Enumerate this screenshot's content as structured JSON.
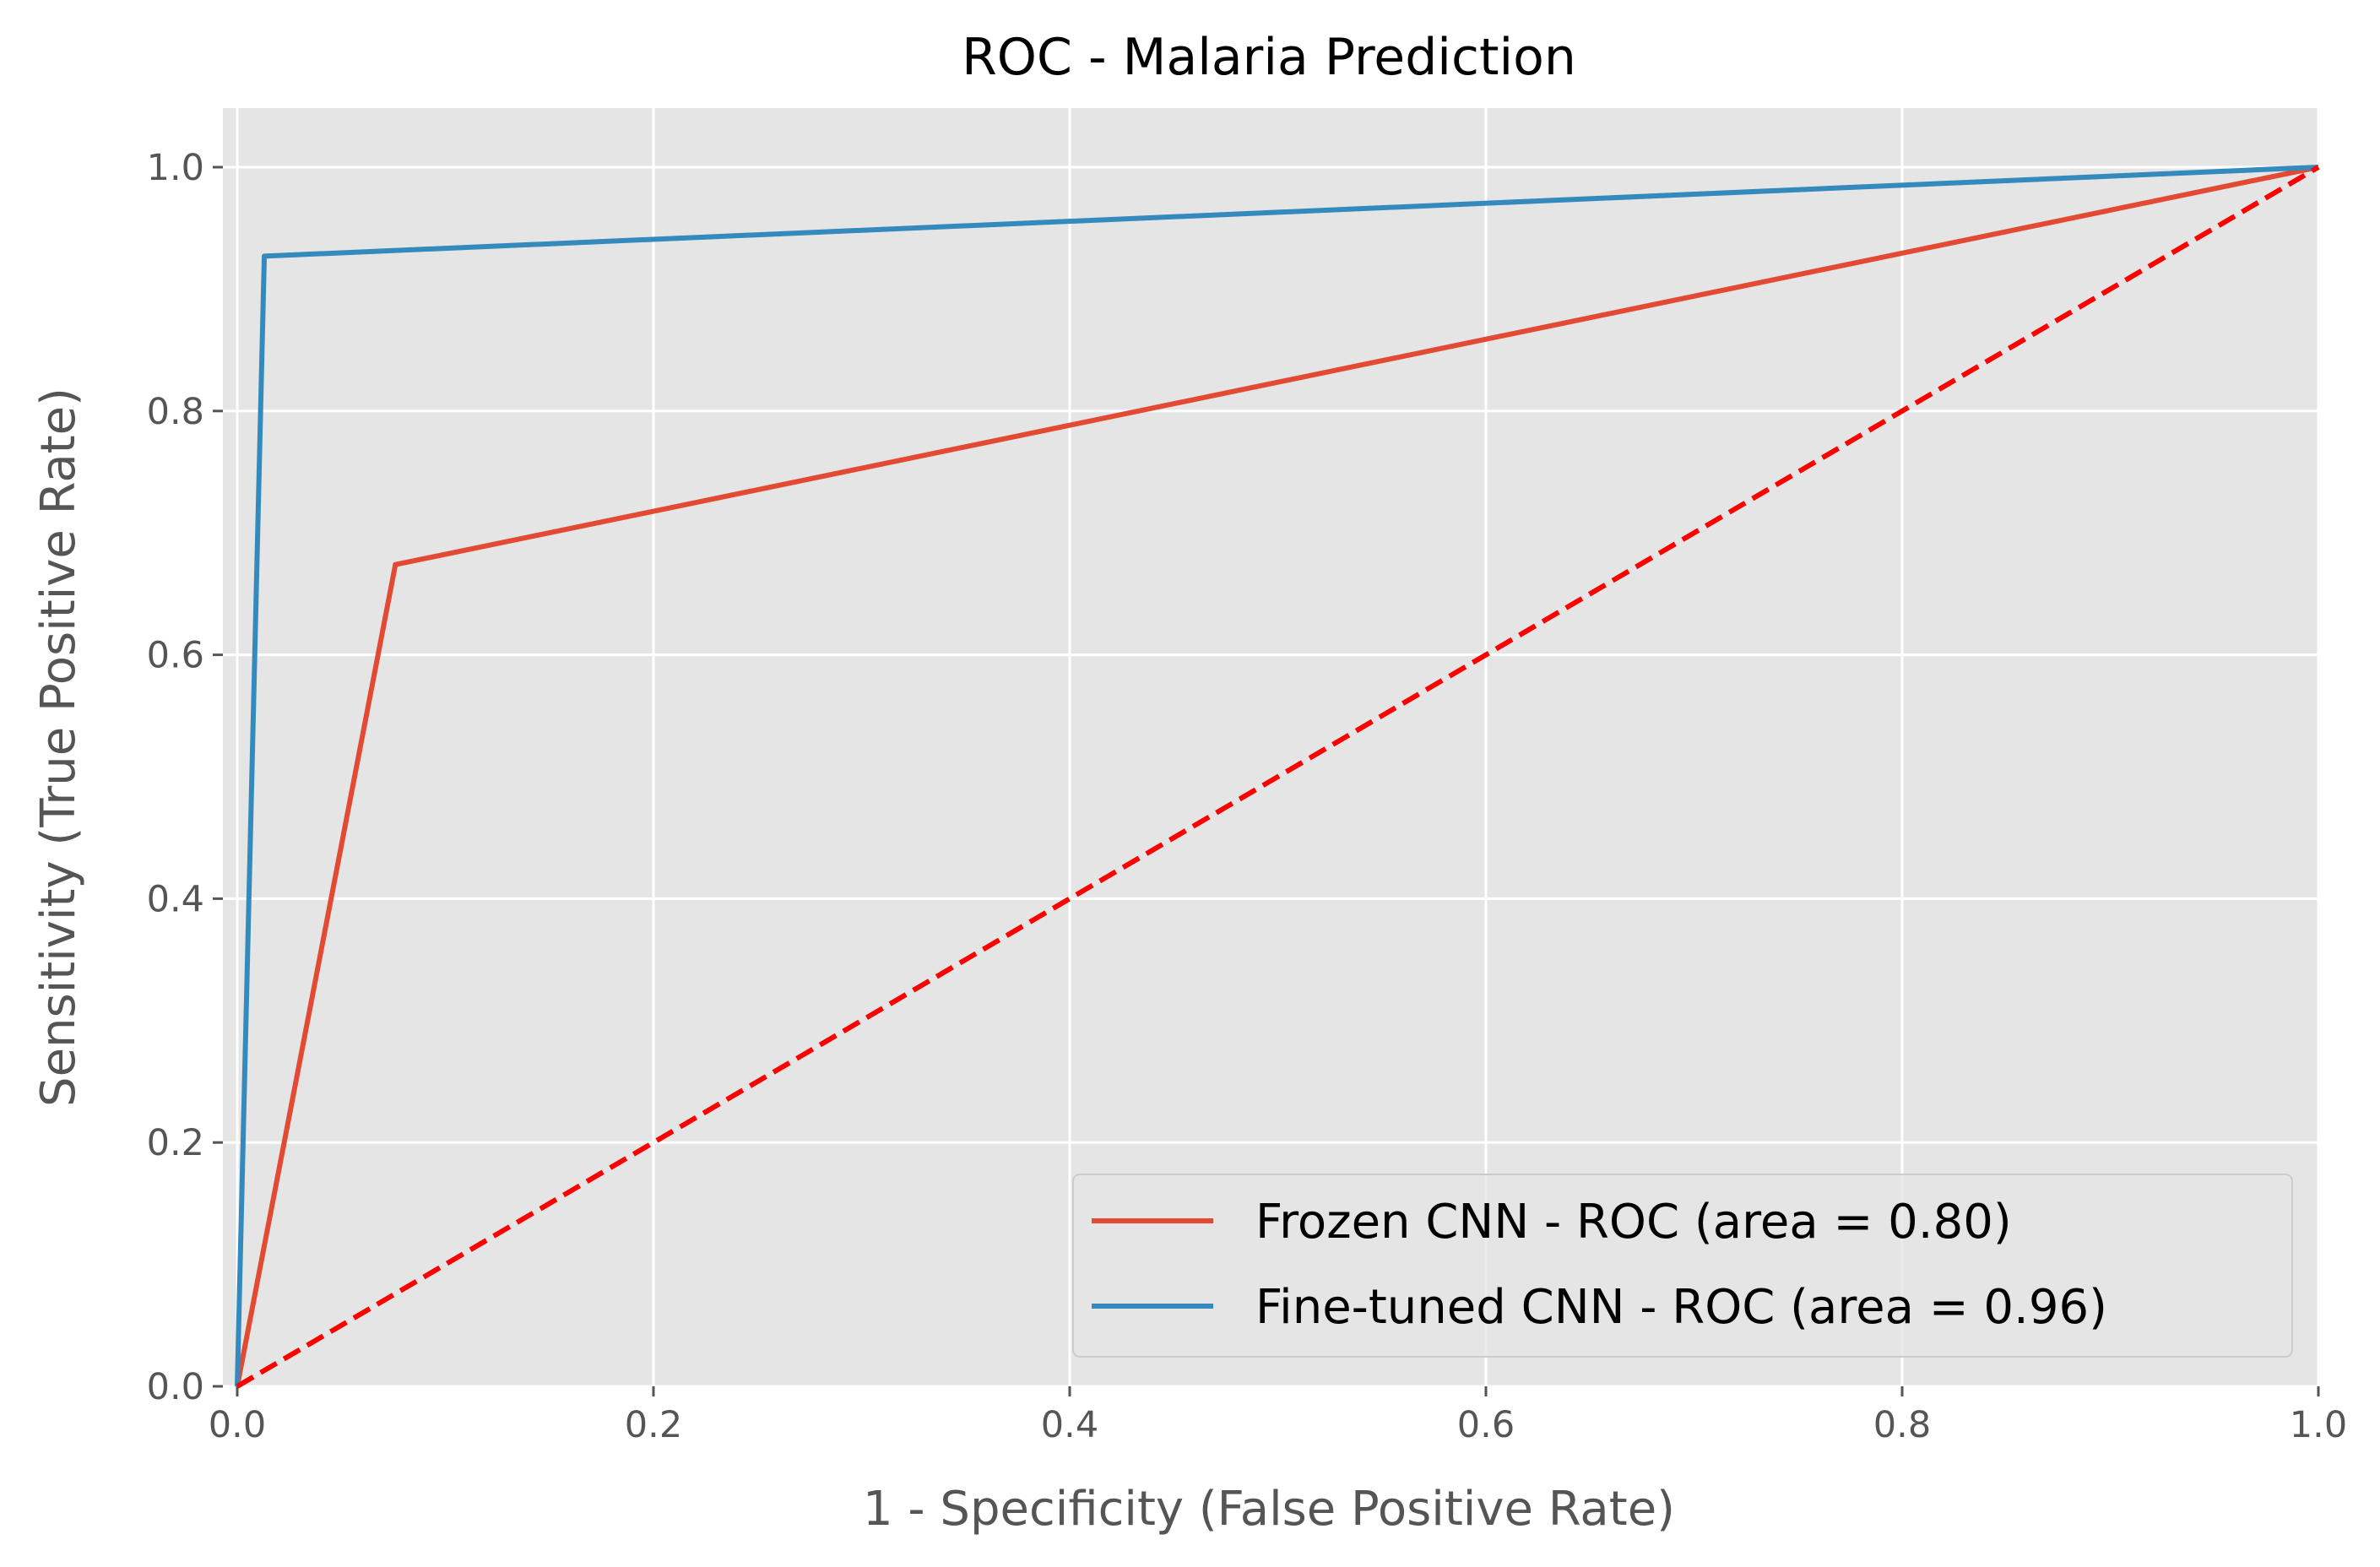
{
  "chart_data": {
    "type": "line",
    "title": "ROC - Malaria Prediction",
    "xlabel": "1 - Specificity (False Positive Rate)",
    "ylabel": "Sensitivity (True Positive Rate)",
    "xlim": [
      0.0,
      1.0
    ],
    "ylim": [
      0.0,
      1.05
    ],
    "xticks": [
      0.0,
      0.2,
      0.4,
      0.6,
      0.8,
      1.0
    ],
    "yticks": [
      0.0,
      0.2,
      0.4,
      0.6,
      0.8,
      1.0
    ],
    "xtick_labels": [
      "0.0",
      "0.2",
      "0.4",
      "0.6",
      "0.8",
      "1.0"
    ],
    "ytick_labels": [
      "0.0",
      "0.2",
      "0.4",
      "0.6",
      "0.8",
      "1.0"
    ],
    "grid": true,
    "legend_position": "bottom-right",
    "series": [
      {
        "name": "Frozen CNN - ROC (area = 0.80)",
        "color": "#E24A33",
        "style": "solid",
        "x": [
          0.0,
          0.076,
          1.0
        ],
        "y": [
          0.0,
          0.674,
          1.0
        ]
      },
      {
        "name": "Fine-tuned CNN - ROC (area = 0.96)",
        "color": "#348ABD",
        "style": "solid",
        "x": [
          0.0,
          0.013,
          1.0
        ],
        "y": [
          0.0,
          0.927,
          1.0
        ]
      }
    ],
    "reference_line": {
      "color": "#FF0000",
      "style": "dashed",
      "x": [
        0.0,
        1.0
      ],
      "y": [
        0.0,
        1.0
      ]
    },
    "colors": {
      "plot_background": "#E5E5E5",
      "grid": "#FFFFFF"
    }
  }
}
